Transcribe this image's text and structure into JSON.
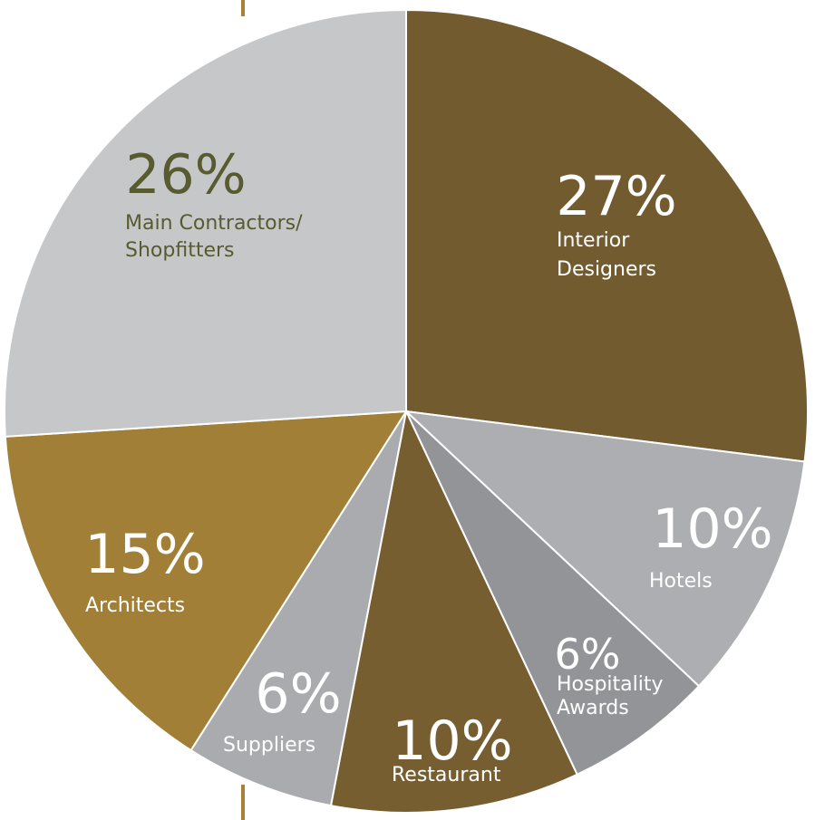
{
  "chart_data": {
    "type": "pie",
    "start_angle_deg": 0,
    "direction": "clockwise",
    "slices": [
      {
        "category": "Interior Designers",
        "label_lines": [
          "Interior",
          "Designers"
        ],
        "value": 27,
        "value_label": "27%",
        "color": "#735b30",
        "text_color": "#ffffff"
      },
      {
        "category": "Hotels",
        "label_lines": [
          "Hotels"
        ],
        "value": 10,
        "value_label": "10%",
        "color": "#adaeb1",
        "text_color": "#ffffff"
      },
      {
        "category": "Hospitality Awards",
        "label_lines": [
          "Hospitality",
          "Awards"
        ],
        "value": 6,
        "value_label": "6%",
        "color": "#939498",
        "text_color": "#ffffff"
      },
      {
        "category": "Restaurant",
        "label_lines": [
          "Restaurant"
        ],
        "value": 10,
        "value_label": "10%",
        "color": "#775e30",
        "text_color": "#ffffff"
      },
      {
        "category": "Suppliers",
        "label_lines": [
          "Suppliers"
        ],
        "value": 6,
        "value_label": "6%",
        "color": "#aaabaf",
        "text_color": "#ffffff"
      },
      {
        "category": "Architects",
        "label_lines": [
          "Architects"
        ],
        "value": 15,
        "value_label": "15%",
        "color": "#a17f36",
        "text_color": "#ffffff"
      },
      {
        "category": "Main Contractors/ Shopfitters",
        "label_lines": [
          "Main Contractors/",
          "Shopfitters"
        ],
        "value": 26,
        "value_label": "26%",
        "color": "#c6c7c9",
        "text_color": "#585a30"
      }
    ]
  },
  "colors": {
    "accent_line": "#a4823a",
    "slice_border": "#ffffff"
  }
}
